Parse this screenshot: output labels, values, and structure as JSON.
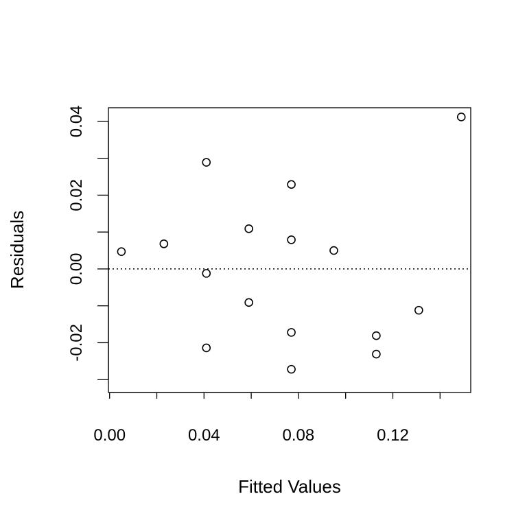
{
  "chart_data": {
    "type": "scatter",
    "title": "",
    "xlabel": "Fitted Values",
    "ylabel": "Residuals",
    "xlim": [
      -0.0005,
      0.153
    ],
    "ylim": [
      -0.0335,
      0.0437
    ],
    "x_ticks": [
      0.0,
      0.02,
      0.04,
      0.06,
      0.08,
      0.1,
      0.12,
      0.14
    ],
    "x_tick_labels": [
      "0.00",
      "",
      "0.04",
      "",
      "0.08",
      "",
      "0.12",
      ""
    ],
    "y_ticks": [
      -0.03,
      -0.02,
      -0.01,
      0.0,
      0.01,
      0.02,
      0.03,
      0.04
    ],
    "y_tick_labels": [
      "",
      "-0.02",
      "",
      "0.00",
      "",
      "0.02",
      "",
      "0.04"
    ],
    "reference_line": {
      "y": 0.0,
      "style": "dotted"
    },
    "grid": false,
    "points": [
      {
        "x": 0.005,
        "y": 0.0047
      },
      {
        "x": 0.023,
        "y": 0.0068
      },
      {
        "x": 0.041,
        "y": 0.0289
      },
      {
        "x": 0.041,
        "y": -0.0012
      },
      {
        "x": 0.041,
        "y": -0.0214
      },
      {
        "x": 0.059,
        "y": 0.0109
      },
      {
        "x": 0.059,
        "y": -0.0091
      },
      {
        "x": 0.077,
        "y": 0.0229
      },
      {
        "x": 0.077,
        "y": 0.0079
      },
      {
        "x": 0.077,
        "y": -0.0172
      },
      {
        "x": 0.077,
        "y": -0.0272
      },
      {
        "x": 0.095,
        "y": 0.005
      },
      {
        "x": 0.113,
        "y": -0.0181
      },
      {
        "x": 0.113,
        "y": -0.0231
      },
      {
        "x": 0.131,
        "y": -0.0112
      },
      {
        "x": 0.149,
        "y": 0.0412
      }
    ]
  }
}
